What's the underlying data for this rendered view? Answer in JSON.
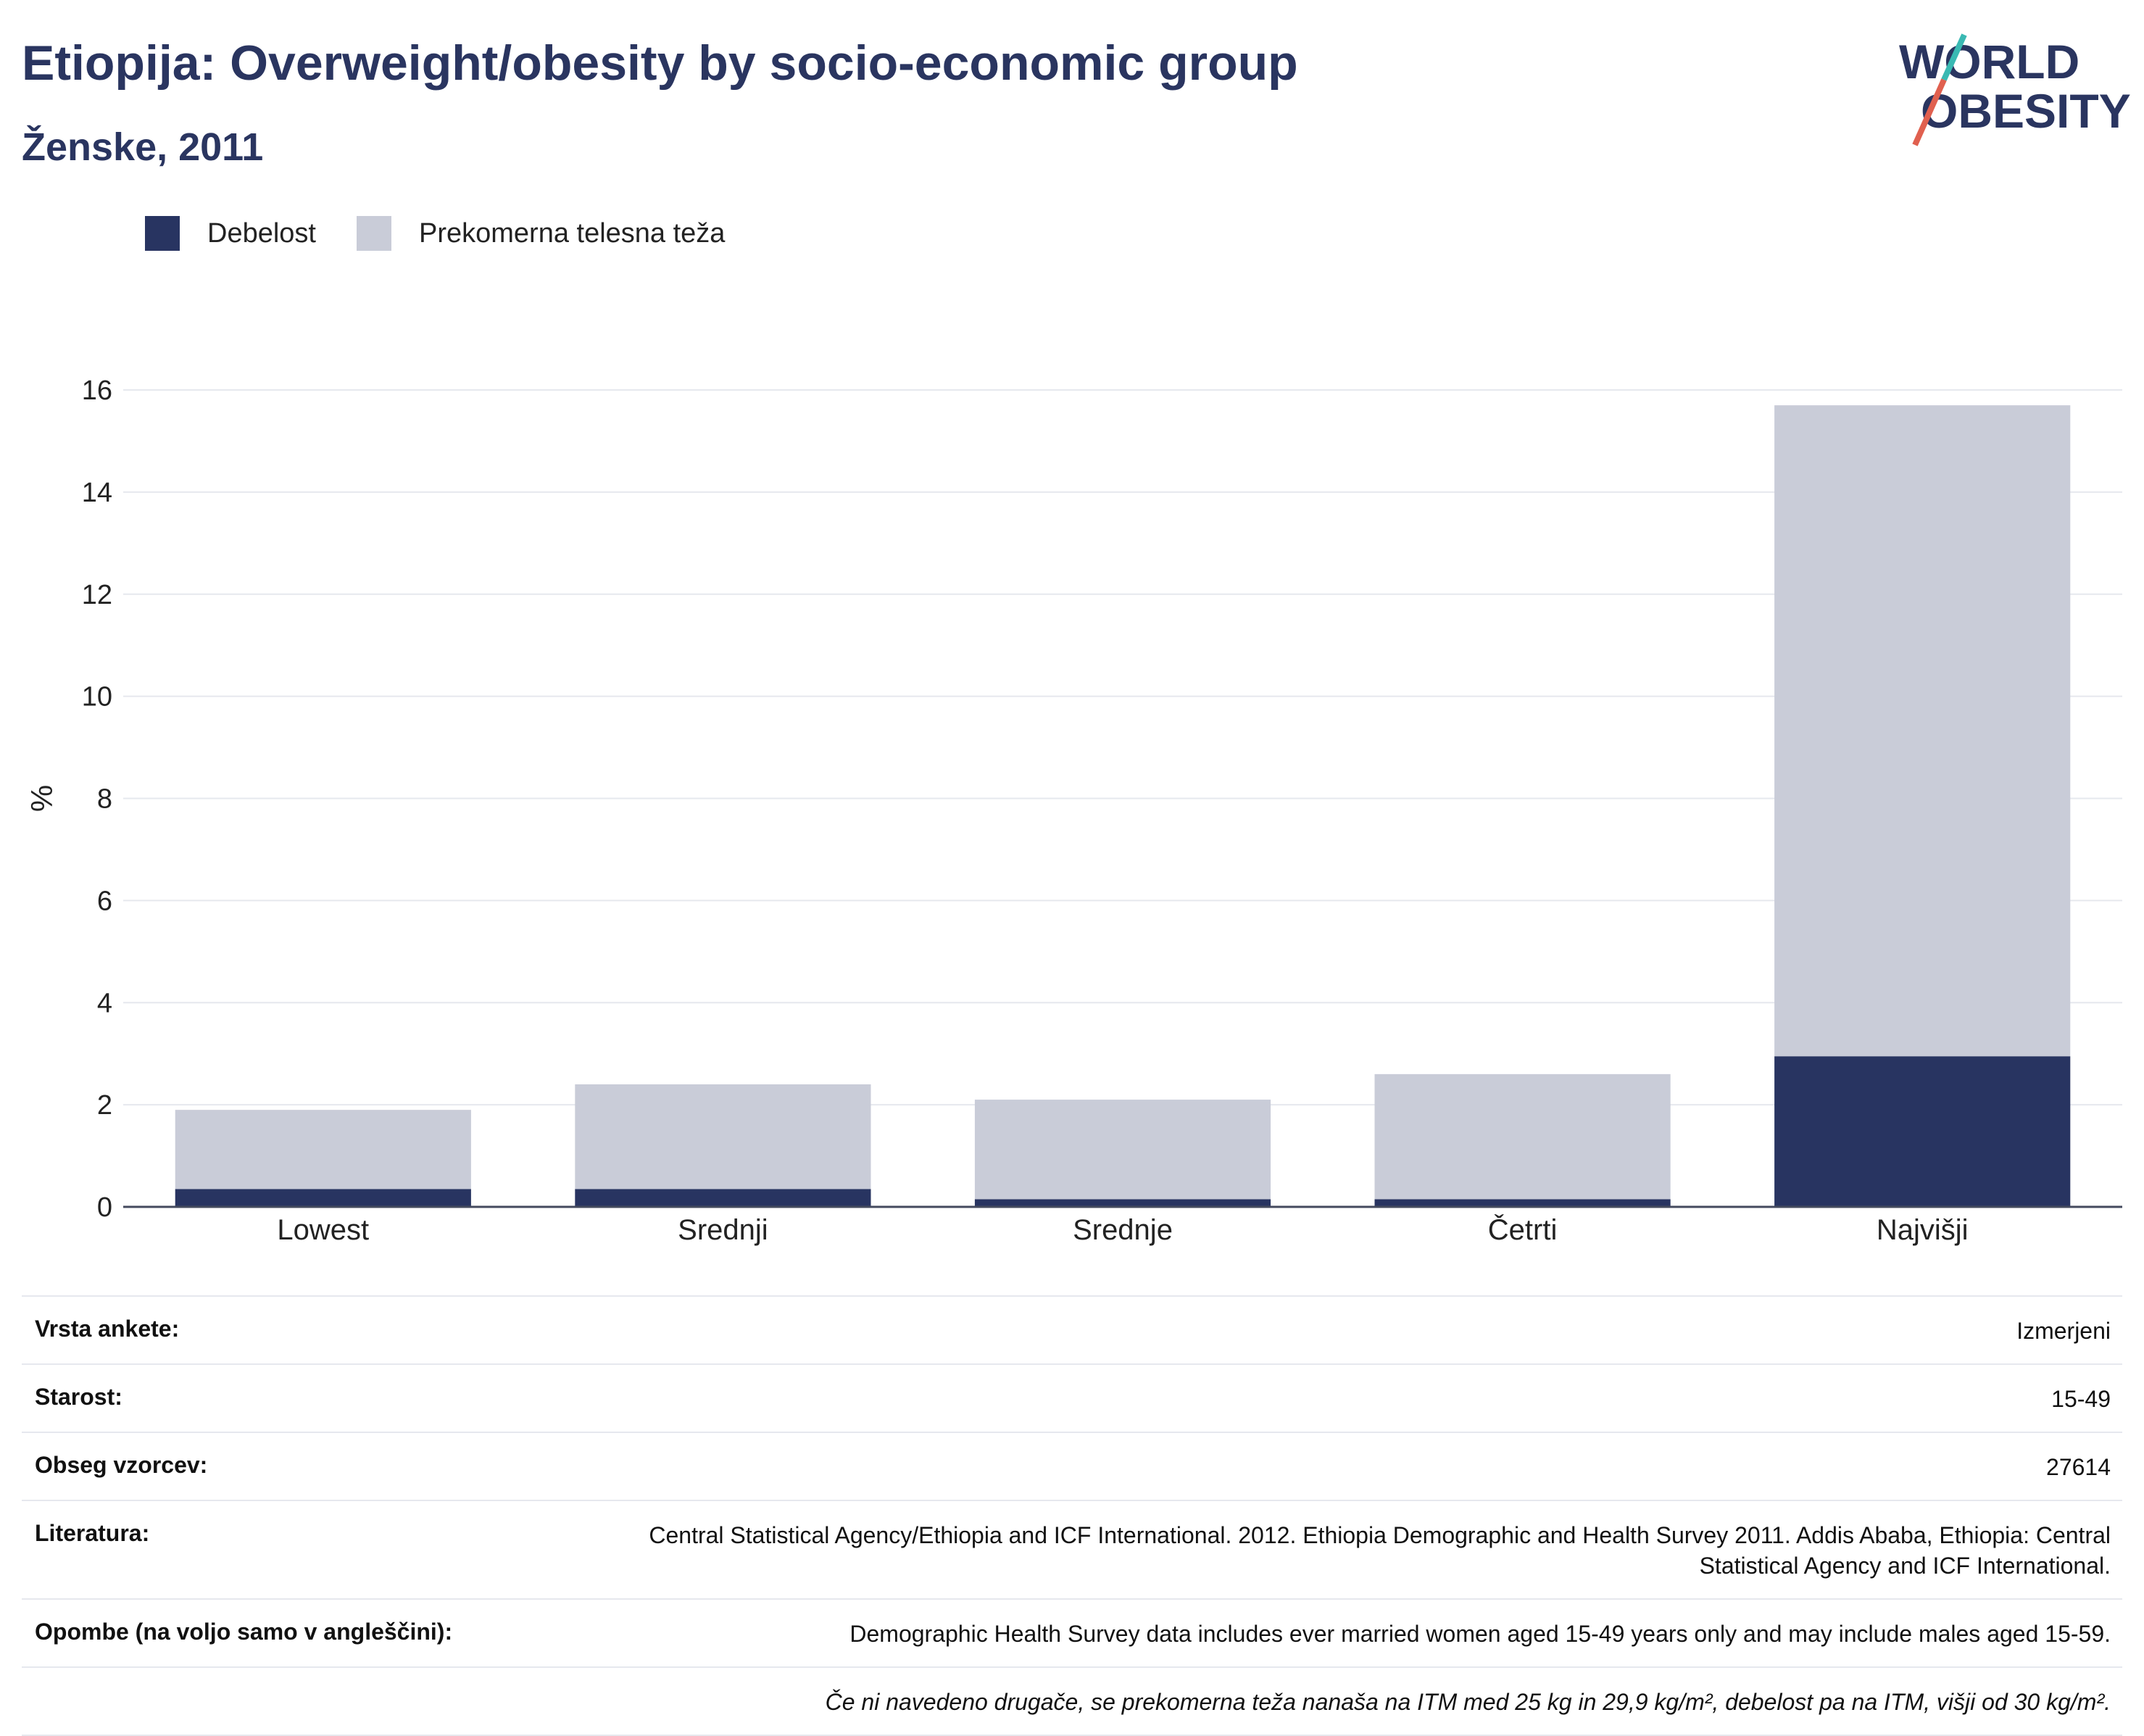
{
  "header": {
    "title": "Etiopija: Overweight/obesity by socio-economic group",
    "subtitle": "Ženske, 2011"
  },
  "logo": {
    "line1": "WORLD",
    "line2": "OBESITY"
  },
  "colors": {
    "obesity": "#283461",
    "overweight": "#c9ccd8",
    "title": "#2a3560",
    "logo_teal": "#3ab9b3",
    "logo_red": "#e0604f"
  },
  "chart_data": {
    "type": "bar",
    "stacked": true,
    "categories": [
      "Lowest",
      "Srednji",
      "Srednje",
      "Četrti",
      "Najvišji"
    ],
    "series": [
      {
        "name": "Debelost",
        "values": [
          0.35,
          0.35,
          0.15,
          0.15,
          2.95
        ]
      },
      {
        "name": "Prekomerna telesna teža",
        "values": [
          1.55,
          2.05,
          1.95,
          2.45,
          12.75
        ]
      }
    ],
    "ylabel": "%",
    "ylim": [
      0,
      16
    ],
    "yticks": [
      0,
      2,
      4,
      6,
      8,
      10,
      12,
      14,
      16
    ],
    "grid": true,
    "legend": "top-left"
  },
  "info": [
    {
      "label": "Vrsta ankete:",
      "value": "Izmerjeni"
    },
    {
      "label": "Starost:",
      "value": "15-49"
    },
    {
      "label": "Obseg vzorcev:",
      "value": "27614"
    },
    {
      "label": "Literatura:",
      "value": "Central Statistical Agency/Ethiopia and ICF International. 2012. Ethiopia Demographic and Health Survey 2011. Addis Ababa, Ethiopia: Central Statistical Agency and ICF International."
    },
    {
      "label": "Opombe (na voljo samo v angleščini):",
      "value": "Demographic Health Survey data includes ever married women aged 15-49 years only and may include males aged 15-59."
    },
    {
      "label": "",
      "value": "Če ni navedeno drugače, se prekomerna teža nanaša na ITM med 25 kg in 29,9 kg/m², debelost pa na ITM, višji od 30 kg/m²."
    }
  ]
}
